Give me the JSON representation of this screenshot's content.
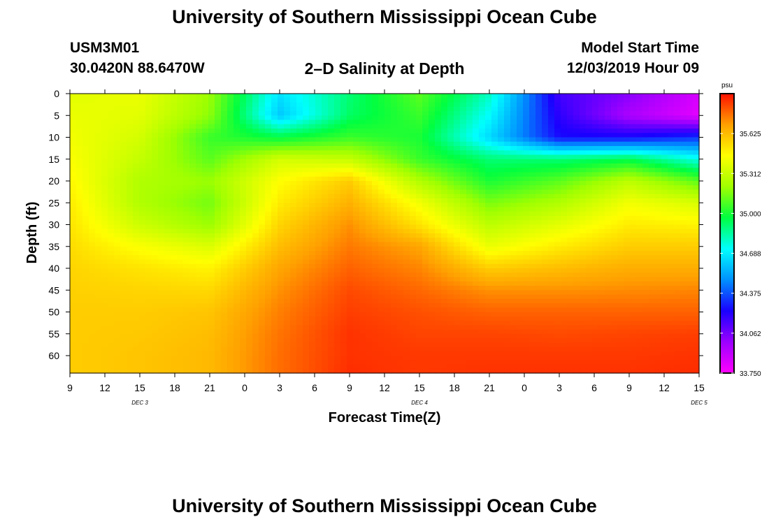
{
  "header": {
    "title_top": "University of Southern Mississippi Ocean Cube",
    "station_id": "USM3M01",
    "station_coords": "30.0420N 88.6470W",
    "plot_title": "2–D Salinity at Depth",
    "model_start_label": "Model Start Time",
    "model_start_value": "12/03/2019 Hour 09"
  },
  "footer": {
    "title_bottom": "University of Southern Mississippi Ocean Cube"
  },
  "chart_data": {
    "type": "heatmap",
    "title": "2–D Salinity at Depth",
    "xlabel": "Forecast Time(Z)",
    "ylabel": "Depth (ft)",
    "x_hours": [
      0,
      6,
      12,
      18,
      24,
      30,
      36,
      42,
      48,
      54
    ],
    "x_tick_labels": [
      "9",
      "12",
      "15",
      "18",
      "21",
      "0",
      "3",
      "6",
      "9",
      "12",
      "15",
      "18",
      "21",
      "0",
      "3",
      "6",
      "9",
      "12",
      "15"
    ],
    "day_labels": [
      {
        "label": "DEC 3",
        "hour": 6
      },
      {
        "label": "DEC 4",
        "hour": 30
      },
      {
        "label": "DEC 5",
        "hour": 54
      }
    ],
    "y_ticks": [
      0,
      5,
      10,
      15,
      20,
      25,
      30,
      35,
      40,
      45,
      50,
      55,
      60
    ],
    "ylim": [
      0,
      64
    ],
    "depths": [
      0,
      5,
      10,
      15,
      20,
      25,
      30,
      35,
      40,
      45,
      50,
      55,
      60,
      64
    ],
    "salinity_grid": [
      [
        35.38,
        35.4,
        35.2,
        34.66,
        34.9,
        35.1,
        34.8,
        34.16,
        34.03,
        33.85
      ],
      [
        35.4,
        35.38,
        35.18,
        34.6,
        34.92,
        35.05,
        34.72,
        34.2,
        33.95,
        33.82
      ],
      [
        35.42,
        35.34,
        35.05,
        34.96,
        35.05,
        35.0,
        34.64,
        34.25,
        34.25,
        34.32
      ],
      [
        35.44,
        35.3,
        35.1,
        35.34,
        35.3,
        35.05,
        34.9,
        34.9,
        34.95,
        34.75
      ],
      [
        35.47,
        35.25,
        35.2,
        35.45,
        35.58,
        35.25,
        35.0,
        35.1,
        35.28,
        35.1
      ],
      [
        35.5,
        35.25,
        35.14,
        35.5,
        35.65,
        35.42,
        35.15,
        35.25,
        35.42,
        35.35
      ],
      [
        35.52,
        35.32,
        35.2,
        35.56,
        35.72,
        35.52,
        35.28,
        35.38,
        35.5,
        35.48
      ],
      [
        35.54,
        35.44,
        35.36,
        35.62,
        35.76,
        35.68,
        35.4,
        35.5,
        35.58,
        35.58
      ],
      [
        35.56,
        35.52,
        35.48,
        35.68,
        35.8,
        35.74,
        35.58,
        35.62,
        35.66,
        35.66
      ],
      [
        35.57,
        35.56,
        35.55,
        35.72,
        35.84,
        35.79,
        35.72,
        35.72,
        35.73,
        35.74
      ],
      [
        35.58,
        35.58,
        35.6,
        35.75,
        35.86,
        35.83,
        35.8,
        35.8,
        35.8,
        35.8
      ],
      [
        35.58,
        35.59,
        35.62,
        35.77,
        35.88,
        35.85,
        35.85,
        35.84,
        35.85,
        35.86
      ],
      [
        35.58,
        35.6,
        35.63,
        35.78,
        35.88,
        35.87,
        35.87,
        35.87,
        35.87,
        35.88
      ],
      [
        35.58,
        35.6,
        35.63,
        35.78,
        35.89,
        35.87,
        35.88,
        35.88,
        35.88,
        35.89
      ]
    ],
    "colorbar": {
      "unit": "psu",
      "min": 33.75,
      "max": 35.9375,
      "tick_values": [
        33.75,
        34.0625,
        34.375,
        34.6875,
        35.0,
        35.3125,
        35.625
      ],
      "tick_labels": [
        "33.750",
        "34.062",
        "34.375",
        "34.688",
        "35.000",
        "35.312",
        "35.625"
      ],
      "colors": [
        "#ff00ff",
        "#9c00ff",
        "#1a00ff",
        "#0090ff",
        "#00ffff",
        "#00ff40",
        "#a0ff00",
        "#ffff00",
        "#ffa000",
        "#ff1000"
      ]
    }
  }
}
